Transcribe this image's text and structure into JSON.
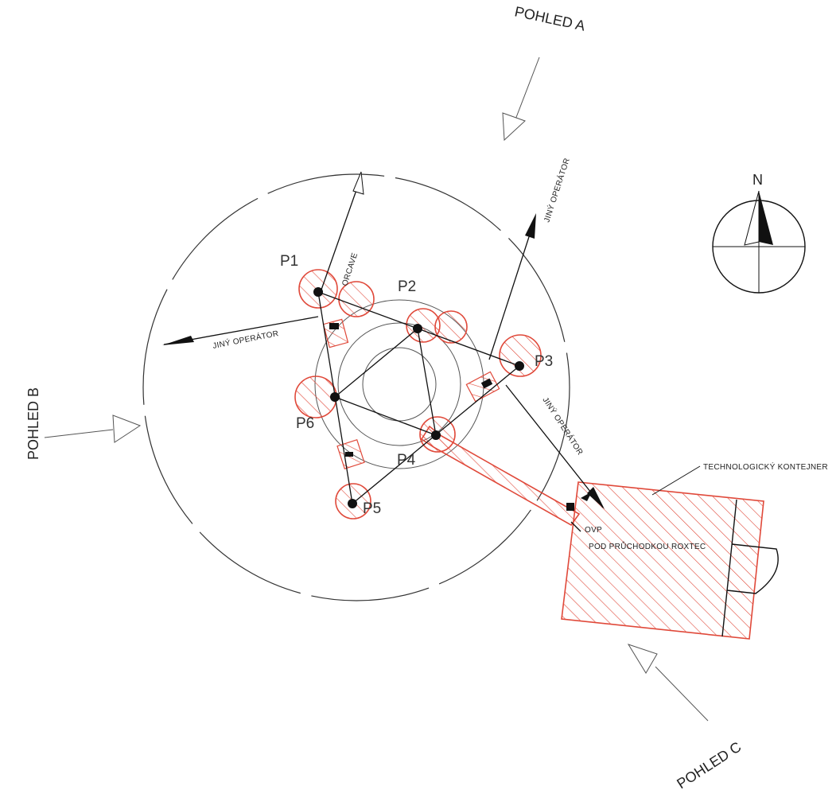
{
  "views": {
    "a": "POHLED A",
    "b": "POHLED B",
    "c": "POHLED C"
  },
  "compass": {
    "north": "N"
  },
  "points": {
    "p1": "P1",
    "p2": "P2",
    "p3": "P3",
    "p4": "P4",
    "p5": "P5",
    "p6": "P6"
  },
  "operators": {
    "orcave": "ORCAVE",
    "jiny_west": "JINÝ OPERÁTOR",
    "jiny_northeast": "JINÝ OPERÁTOR",
    "jiny_southeast": "JINÝ OPERÁTOR"
  },
  "container": {
    "label": "TECHNOLOGICKÝ KONTEJNER",
    "ovp": "OVP",
    "roxtec": "POD PRŮCHODKOU ROXTEC"
  },
  "colors": {
    "hatch": "#e0493a",
    "line": "#111111"
  }
}
